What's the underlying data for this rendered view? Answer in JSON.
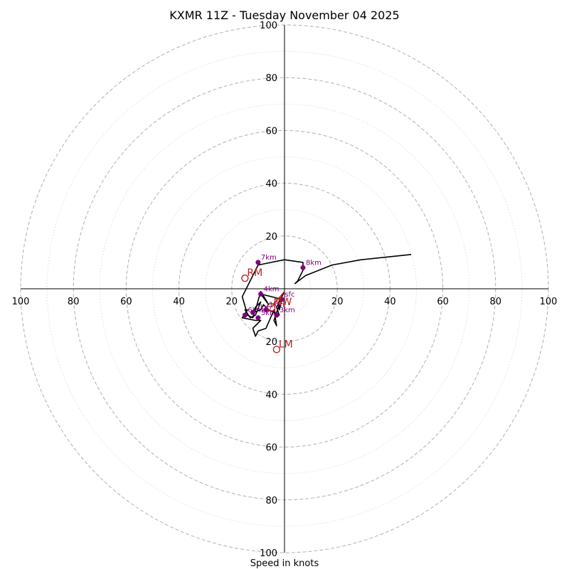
{
  "chart_data": {
    "type": "hodograph",
    "title": "KXMR 11Z - Tuesday November 04 2025",
    "xlabel": "Speed in knots",
    "ylabel": "",
    "range": [
      -100,
      100
    ],
    "major_rings": [
      20,
      40,
      60,
      80,
      100
    ],
    "minor_rings": [
      10,
      30,
      50,
      70,
      90
    ],
    "tick_labels": {
      "right": [
        "20",
        "40",
        "60",
        "80",
        "100"
      ],
      "left": [
        "100",
        "80",
        "60",
        "40",
        "20"
      ],
      "top": [
        "100",
        "80",
        "60",
        "40",
        "20"
      ],
      "bottom": [
        "20",
        "40",
        "60",
        "80",
        "100"
      ]
    },
    "grid": true,
    "series": [
      {
        "name": "wind profile",
        "points": [
          [
            0,
            -1
          ],
          [
            -3,
            -7
          ],
          [
            -2,
            -10
          ],
          [
            -6,
            -8
          ],
          [
            -8,
            -6
          ],
          [
            -9,
            -8
          ],
          [
            -12,
            -9
          ],
          [
            -11,
            -7
          ],
          [
            -9,
            -5
          ],
          [
            -11,
            -10
          ],
          [
            -13,
            -11
          ],
          [
            -15,
            -8
          ],
          [
            -14,
            -8
          ],
          [
            -16,
            -11
          ],
          [
            -11,
            -12
          ],
          [
            -9,
            -12
          ],
          [
            -12,
            -15
          ],
          [
            -11,
            -18
          ],
          [
            -10,
            -16
          ],
          [
            -7,
            -15
          ],
          [
            -4,
            -8
          ],
          [
            -3,
            -14
          ],
          [
            -4,
            -12
          ],
          [
            -2,
            -6
          ],
          [
            -2,
            -8
          ],
          [
            -1,
            -4
          ],
          [
            -9,
            -2
          ],
          [
            -6,
            -6
          ],
          [
            -9,
            -1
          ],
          [
            -11,
            -8
          ],
          [
            -12,
            -11
          ],
          [
            -14,
            -10
          ],
          [
            -16,
            -3
          ],
          [
            -10,
            9
          ],
          [
            0,
            11
          ],
          [
            7,
            10
          ],
          [
            7,
            7
          ],
          [
            5,
            3
          ],
          [
            4,
            2
          ],
          [
            8,
            5
          ],
          [
            18,
            9
          ],
          [
            29,
            11
          ],
          [
            48,
            13
          ]
        ]
      }
    ],
    "height_markers": [
      {
        "label": "sfc",
        "u": -1,
        "v": -4
      },
      {
        "label": "1km",
        "u": -7,
        "v": -8
      },
      {
        "label": "2km",
        "u": -12,
        "v": -9
      },
      {
        "label": "3km",
        "u": -3,
        "v": -10
      },
      {
        "label": "4km",
        "u": -9,
        "v": -2
      },
      {
        "label": "5km",
        "u": -10,
        "v": -11
      },
      {
        "label": "6km",
        "u": -15,
        "v": -10
      },
      {
        "label": "7km",
        "u": -10,
        "v": 10
      },
      {
        "label": "8km",
        "u": 7,
        "v": 8
      }
    ],
    "storm_motions": [
      {
        "label": "RM",
        "u": -15,
        "v": 4
      },
      {
        "label": "LM",
        "u": -3,
        "v": -23
      },
      {
        "label": "MW",
        "u": -5,
        "v": -7
      }
    ],
    "shear_vector": {
      "from": [
        -5,
        -7
      ],
      "to": [
        0,
        -1
      ]
    }
  },
  "colors": {
    "profile": "#000000",
    "markers": "#800080",
    "motion": "#b22222",
    "grid": "#b0b0b0"
  }
}
